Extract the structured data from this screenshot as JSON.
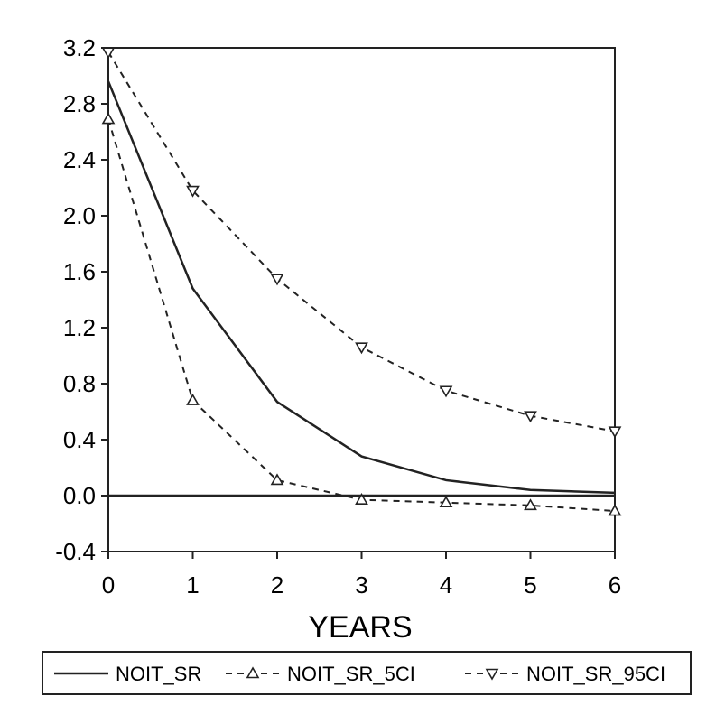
{
  "chart_data": {
    "type": "line",
    "title": "",
    "xlabel": "YEARS",
    "ylabel": "",
    "x": [
      0,
      1,
      2,
      3,
      4,
      5,
      6
    ],
    "xlim": [
      0,
      6
    ],
    "ylim": [
      -0.4,
      3.2
    ],
    "xticks": [
      "0",
      "1",
      "2",
      "3",
      "4",
      "5",
      "6"
    ],
    "yticks": [
      "3.2",
      "2.8",
      "2.4",
      "2.0",
      "1.6",
      "1.2",
      "0.8",
      "0.4",
      "0.0",
      "-0.4"
    ],
    "ytick_values": [
      3.2,
      2.8,
      2.4,
      2.0,
      1.6,
      1.2,
      0.8,
      0.4,
      0.0,
      -0.4
    ],
    "zero_line": 0.0,
    "grid": false,
    "legend_position": "bottom",
    "series": [
      {
        "name": "NOIT_SR",
        "values": [
          2.96,
          1.48,
          0.67,
          0.28,
          0.11,
          0.04,
          0.02
        ],
        "style": "solid",
        "marker": "none",
        "color": "#222222"
      },
      {
        "name": "NOIT_SR_5CI",
        "values": [
          2.69,
          0.68,
          0.11,
          -0.03,
          -0.05,
          -0.07,
          -0.11
        ],
        "style": "dashed",
        "marker": "triangle-up",
        "color": "#222222"
      },
      {
        "name": "NOIT_SR_95CI",
        "values": [
          3.17,
          2.18,
          1.55,
          1.06,
          0.75,
          0.57,
          0.46
        ],
        "style": "dashed",
        "marker": "triangle-down",
        "color": "#222222"
      }
    ]
  }
}
